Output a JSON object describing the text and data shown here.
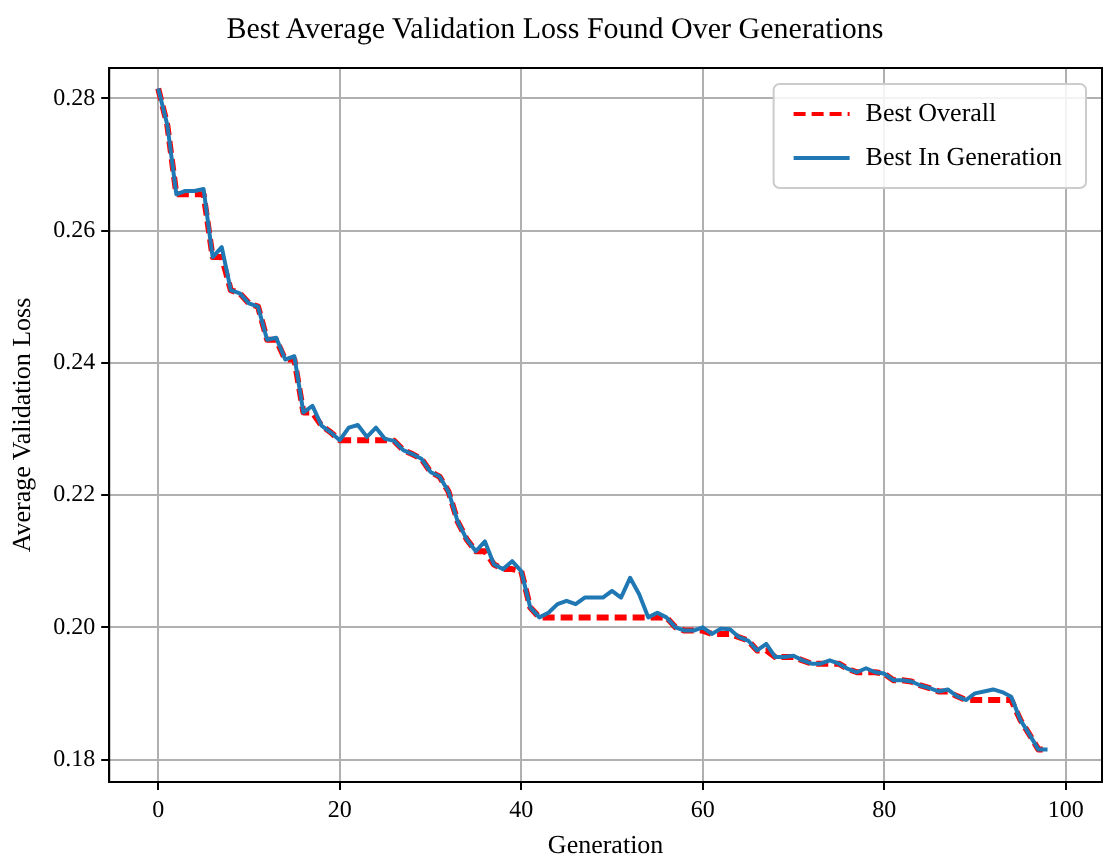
{
  "chart_data": {
    "type": "line",
    "title": "Best Average Validation Loss Found Over Generations",
    "xlabel": "Generation",
    "ylabel": "Average Validation Loss",
    "x": [
      0,
      1,
      2,
      3,
      4,
      5,
      6,
      7,
      8,
      9,
      10,
      11,
      12,
      13,
      14,
      15,
      16,
      17,
      18,
      19,
      20,
      21,
      22,
      23,
      24,
      25,
      26,
      27,
      28,
      29,
      30,
      31,
      32,
      33,
      34,
      35,
      36,
      37,
      38,
      39,
      40,
      41,
      42,
      43,
      44,
      45,
      46,
      47,
      48,
      49,
      50,
      51,
      52,
      53,
      54,
      55,
      56,
      57,
      58,
      59,
      60,
      61,
      62,
      63,
      64,
      65,
      66,
      67,
      68,
      69,
      70,
      71,
      72,
      73,
      74,
      75,
      76,
      77,
      78,
      79,
      80,
      81,
      82,
      83,
      84,
      85,
      86,
      87,
      88,
      89,
      90,
      91,
      92,
      93,
      94,
      95,
      96,
      97,
      98
    ],
    "series": [
      {
        "name": "Best Overall",
        "color": "#ff0000",
        "line_style": "dashed",
        "values": [
          0.2815,
          0.276,
          0.2655,
          0.2655,
          0.2655,
          0.2655,
          0.256,
          0.256,
          0.251,
          0.2505,
          0.249,
          0.2485,
          0.2435,
          0.2435,
          0.2405,
          0.2405,
          0.2325,
          0.2325,
          0.2305,
          0.2295,
          0.2283,
          0.2283,
          0.2283,
          0.2283,
          0.2283,
          0.2283,
          0.2282,
          0.2268,
          0.2262,
          0.2255,
          0.2235,
          0.2228,
          0.2205,
          0.216,
          0.2133,
          0.2115,
          0.2115,
          0.2095,
          0.2088,
          0.2088,
          0.2085,
          0.203,
          0.2015,
          0.2015,
          0.2015,
          0.2015,
          0.2015,
          0.2015,
          0.2015,
          0.2015,
          0.2015,
          0.2015,
          0.2015,
          0.2015,
          0.2015,
          0.2015,
          0.2015,
          0.2,
          0.1995,
          0.1995,
          0.1995,
          0.199,
          0.199,
          0.199,
          0.1985,
          0.198,
          0.1965,
          0.1965,
          0.1955,
          0.1955,
          0.1955,
          0.195,
          0.1945,
          0.1945,
          0.1945,
          0.1945,
          0.1937,
          0.1932,
          0.1932,
          0.1932,
          0.193,
          0.192,
          0.192,
          0.1918,
          0.1912,
          0.1908,
          0.1903,
          0.1903,
          0.1896,
          0.189,
          0.189,
          0.189,
          0.189,
          0.189,
          0.189,
          0.186,
          0.1838,
          0.1815,
          0.1815
        ]
      },
      {
        "name": "Best In Generation",
        "color": "#1f77b4",
        "line_style": "solid",
        "values": [
          0.2815,
          0.276,
          0.2655,
          0.266,
          0.266,
          0.2663,
          0.256,
          0.2575,
          0.251,
          0.2505,
          0.249,
          0.2485,
          0.2435,
          0.2438,
          0.2405,
          0.241,
          0.2325,
          0.2335,
          0.2305,
          0.2295,
          0.2283,
          0.2302,
          0.2306,
          0.2288,
          0.2302,
          0.2285,
          0.2282,
          0.2268,
          0.2262,
          0.2255,
          0.2235,
          0.2228,
          0.2205,
          0.216,
          0.2133,
          0.2115,
          0.213,
          0.2095,
          0.2088,
          0.21,
          0.2085,
          0.203,
          0.2015,
          0.2022,
          0.2035,
          0.204,
          0.2035,
          0.2045,
          0.2045,
          0.2045,
          0.2055,
          0.2045,
          0.2075,
          0.205,
          0.2015,
          0.2022,
          0.2015,
          0.2,
          0.1995,
          0.1995,
          0.2,
          0.199,
          0.1998,
          0.1997,
          0.1985,
          0.198,
          0.1965,
          0.1975,
          0.1955,
          0.1955,
          0.1957,
          0.195,
          0.1945,
          0.1945,
          0.195,
          0.1945,
          0.1937,
          0.1932,
          0.1938,
          0.1932,
          0.193,
          0.192,
          0.192,
          0.1918,
          0.1912,
          0.1908,
          0.1903,
          0.1906,
          0.1896,
          0.189,
          0.19,
          0.1903,
          0.1906,
          0.1902,
          0.1895,
          0.186,
          0.1838,
          0.1815,
          0.1815
        ]
      }
    ],
    "xlim": [
      -5.4,
      104
    ],
    "xticks": [
      0,
      20,
      40,
      60,
      80,
      100
    ],
    "ylim": [
      0.1766,
      0.2846
    ],
    "yticks": [
      {
        "value": 0.18,
        "label": "0.18"
      },
      {
        "value": 0.2,
        "label": "0.20"
      },
      {
        "value": 0.22,
        "label": "0.22"
      },
      {
        "value": 0.24,
        "label": "0.24"
      },
      {
        "value": 0.26,
        "label": "0.26"
      },
      {
        "value": 0.28,
        "label": "0.28"
      }
    ],
    "grid": true,
    "legend": "top right",
    "marker": "none"
  }
}
